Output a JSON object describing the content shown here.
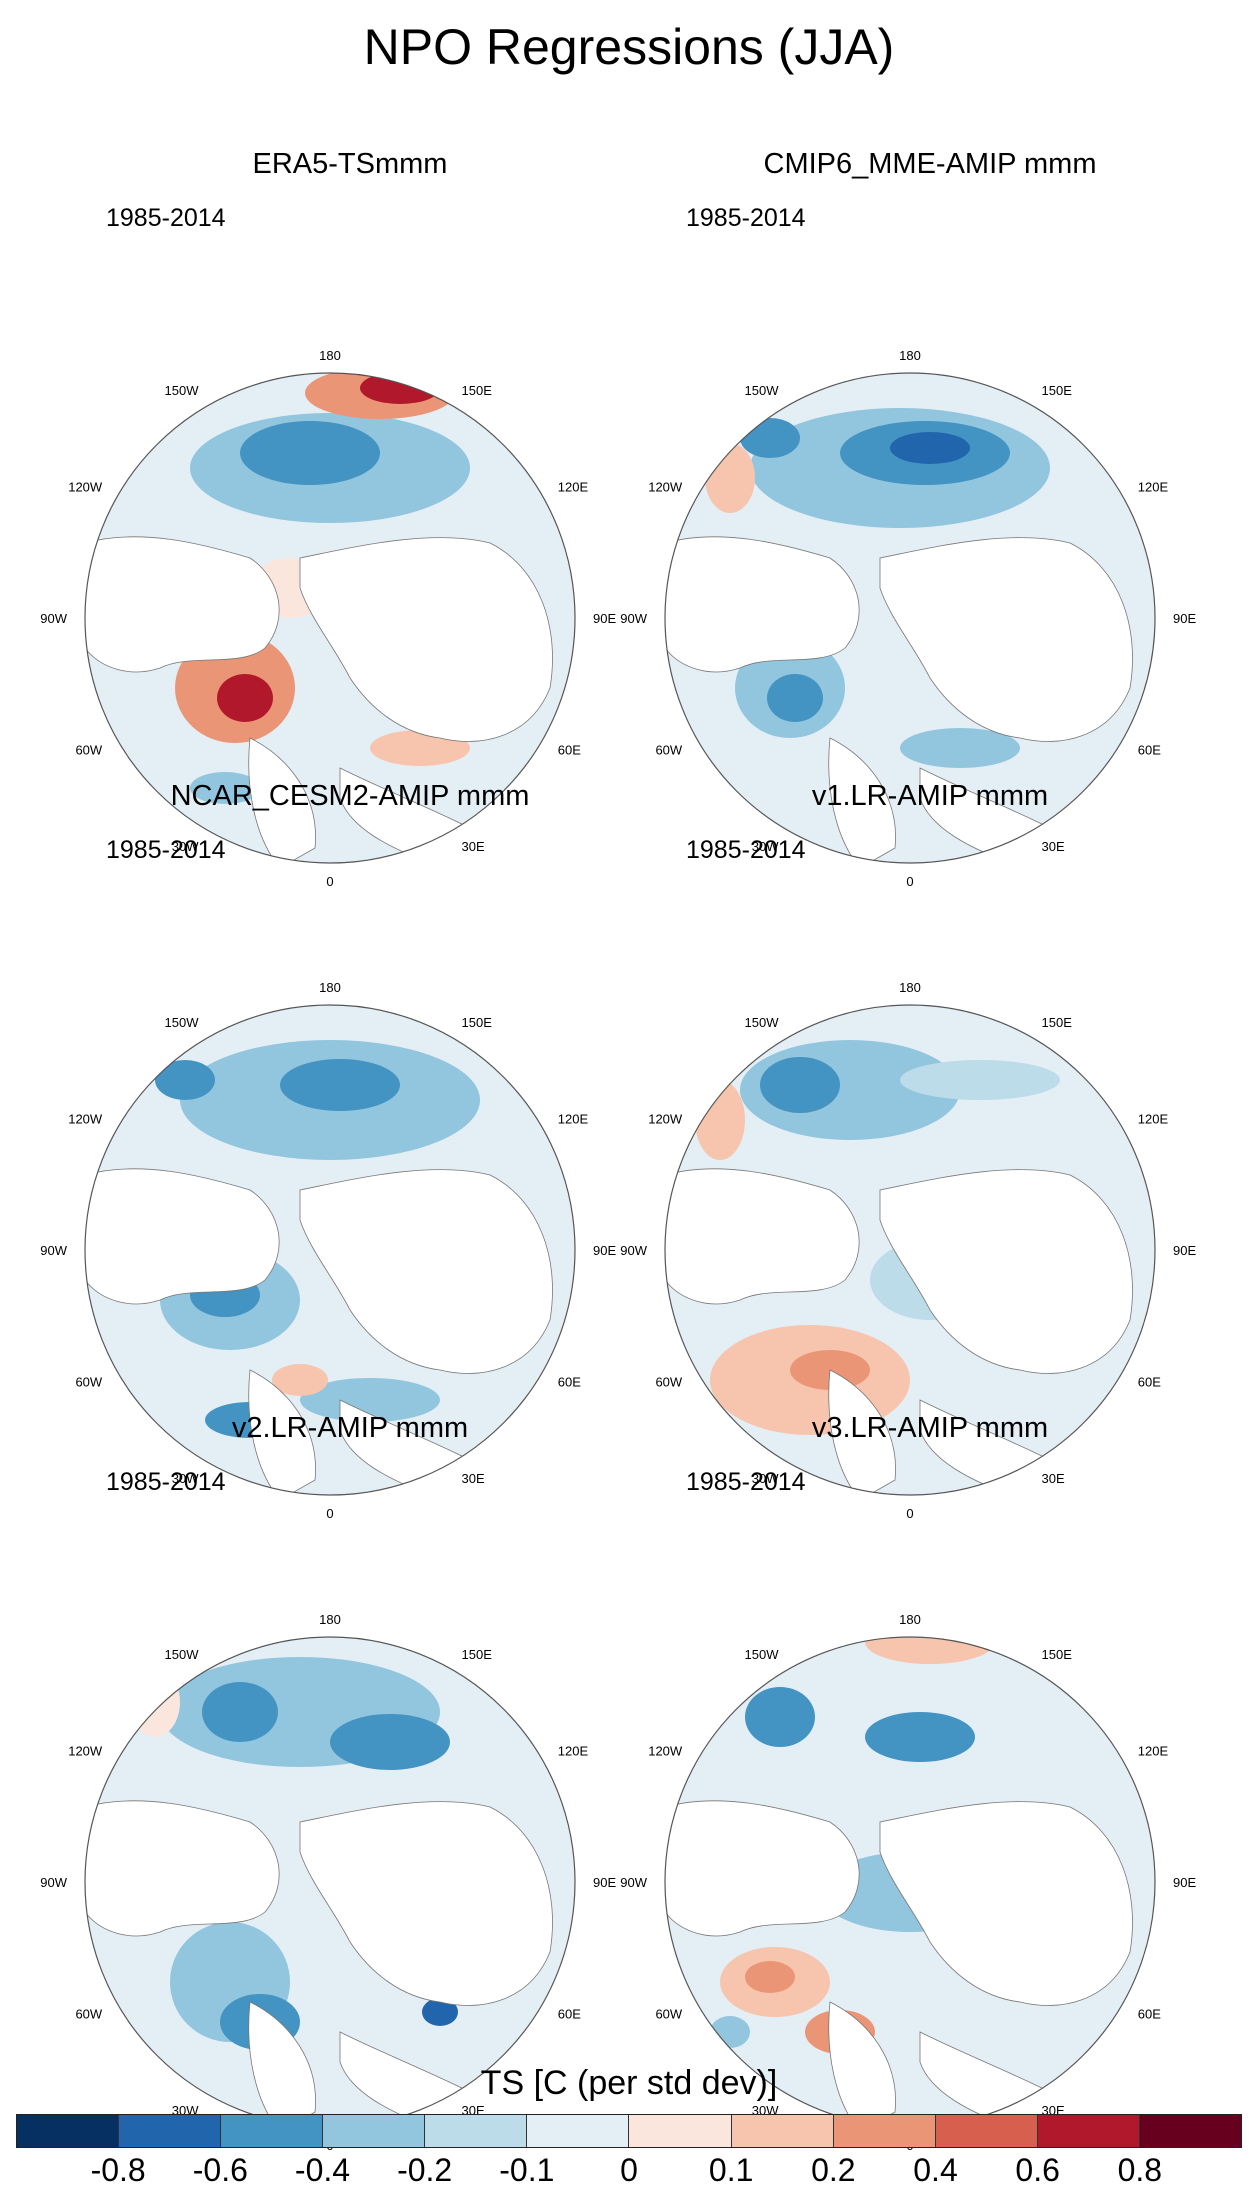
{
  "title": "NPO Regressions (JJA)",
  "colorbar": {
    "title": "TS [C (per std dev)]",
    "colors": [
      "#053061",
      "#2166ac",
      "#4393c3",
      "#92c5de",
      "#bcdcea",
      "#e4eef5",
      "#fbe6dd",
      "#f7c5ad",
      "#eb9577",
      "#d6604d",
      "#b2182b",
      "#67001f"
    ],
    "tick_labels": [
      "-0.8",
      "-0.6",
      "-0.4",
      "-0.2",
      "-0.1",
      "0",
      "0.1",
      "0.2",
      "0.4",
      "0.6",
      "0.8"
    ]
  },
  "map": {
    "projection": "North polar stereographic",
    "lon_labels": {
      "l180": "180",
      "l150w": "150W",
      "l150e": "150E",
      "l120w": "120W",
      "l120e": "120E",
      "l90w": "90W",
      "l90e": "90E",
      "l60w": "60W",
      "l60e": "60E",
      "l30w": "30W",
      "l30e": "30E",
      "l0": "0"
    }
  },
  "panels": [
    {
      "title": "ERA5-TSmmm",
      "years": "1985-2014"
    },
    {
      "title": "CMIP6_MME-AMIP  mmm",
      "years": "1985-2014"
    },
    {
      "title": "NCAR_CESM2-AMIP  mmm",
      "years": "1985-2014"
    },
    {
      "title": "v1.LR-AMIP  mmm",
      "years": "1985-2014"
    },
    {
      "title": "v2.LR-AMIP  mmm",
      "years": "1985-2014"
    },
    {
      "title": "v3.LR-AMIP  mmm",
      "years": "1985-2014"
    }
  ]
}
